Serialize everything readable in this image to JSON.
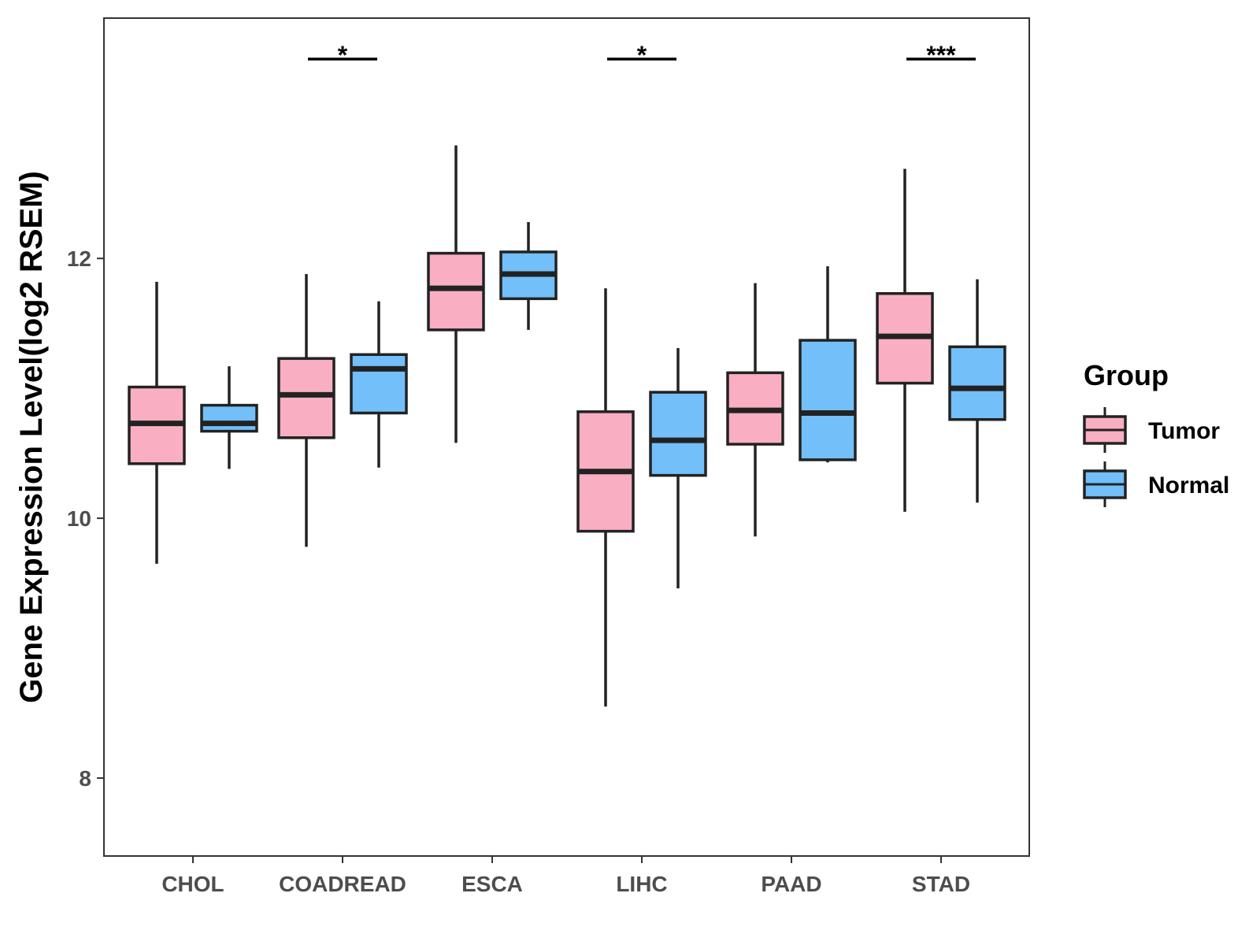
{
  "chart_data": {
    "type": "boxplot",
    "title": "",
    "xlabel": "",
    "ylabel": "Gene Expression Level(log2 RSEM)",
    "ylim": [
      7.4,
      13.85
    ],
    "yticks": [
      8,
      10,
      12
    ],
    "ytick_labels": [
      "8",
      "10",
      "12"
    ],
    "categories": [
      "CHOL",
      "COADREAD",
      "ESCA",
      "LIHC",
      "PAAD",
      "STAD"
    ],
    "legend": {
      "title": "Group",
      "position": "right",
      "entries": [
        "Tumor",
        "Normal"
      ]
    },
    "colors": {
      "Tumor": "#f9afc1",
      "Normal": "#72bffa",
      "outline": "#222222"
    },
    "series": [
      {
        "name": "Tumor",
        "boxes": [
          {
            "min": 9.65,
            "q1": 10.42,
            "median": 10.73,
            "q3": 11.01,
            "max": 11.82
          },
          {
            "min": 9.78,
            "q1": 10.62,
            "median": 10.95,
            "q3": 11.23,
            "max": 11.88
          },
          {
            "min": 10.58,
            "q1": 11.45,
            "median": 11.77,
            "q3": 12.04,
            "max": 12.87
          },
          {
            "min": 8.55,
            "q1": 9.9,
            "median": 10.36,
            "q3": 10.82,
            "max": 11.77
          },
          {
            "min": 9.86,
            "q1": 10.57,
            "median": 10.83,
            "q3": 11.12,
            "max": 11.81
          },
          {
            "min": 10.05,
            "q1": 11.04,
            "median": 11.4,
            "q3": 11.73,
            "max": 12.69
          }
        ]
      },
      {
        "name": "Normal",
        "boxes": [
          {
            "min": 10.38,
            "q1": 10.67,
            "median": 10.73,
            "q3": 10.87,
            "max": 11.17
          },
          {
            "min": 10.39,
            "q1": 10.81,
            "median": 11.15,
            "q3": 11.26,
            "max": 11.67
          },
          {
            "min": 11.45,
            "q1": 11.69,
            "median": 11.88,
            "q3": 12.05,
            "max": 12.28
          },
          {
            "min": 9.46,
            "q1": 10.33,
            "median": 10.6,
            "q3": 10.97,
            "max": 11.31
          },
          {
            "min": 10.43,
            "q1": 10.45,
            "median": 10.81,
            "q3": 11.37,
            "max": 11.94
          },
          {
            "min": 10.12,
            "q1": 10.76,
            "median": 11.0,
            "q3": 11.32,
            "max": 11.84
          }
        ]
      }
    ],
    "significance": [
      {
        "category": "COADREAD",
        "label": "*"
      },
      {
        "category": "LIHC",
        "label": "*"
      },
      {
        "category": "STAD",
        "label": "***"
      }
    ]
  }
}
